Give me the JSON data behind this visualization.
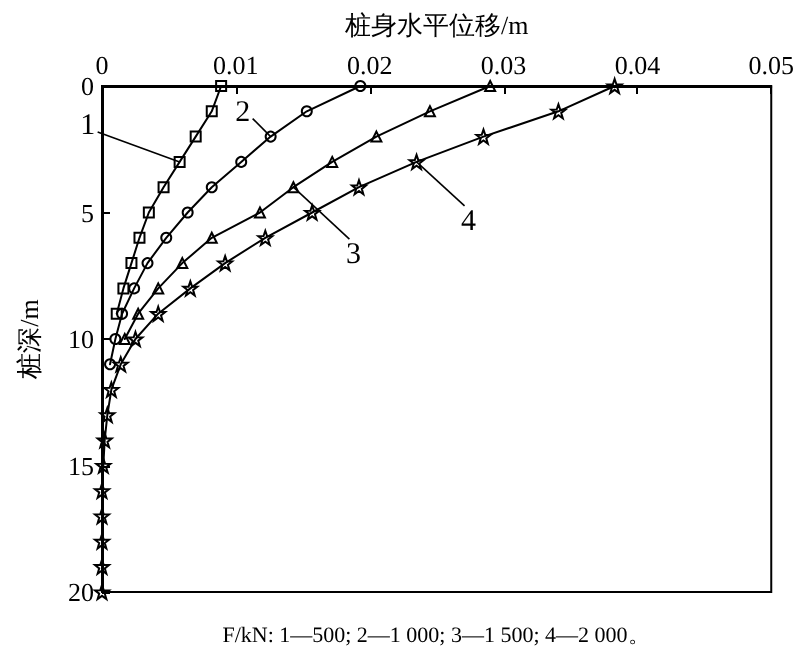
{
  "chart_data": {
    "type": "line",
    "xlabel": "桩身水平位移/m",
    "ylabel": "桩深/m",
    "xlim": [
      0,
      0.05
    ],
    "xticks": [
      0,
      0.01,
      0.02,
      0.03,
      0.04,
      0.05
    ],
    "ylim": [
      20,
      0
    ],
    "yticks": [
      0,
      5,
      10,
      15,
      20
    ],
    "grid": false,
    "line_style": "solid",
    "series": [
      {
        "color": "#000000",
        "marker": "square",
        "values": [
          0,
          1,
          2,
          3,
          4,
          5,
          6,
          7,
          8,
          9
        ],
        "x": [
          0.0089,
          0.0082,
          0.007,
          0.0058,
          0.0046,
          0.0035,
          0.0028,
          0.0022,
          0.0016,
          0.0011
        ]
      },
      {
        "color": "#000000",
        "marker": "circle",
        "values": [
          0,
          1,
          2,
          3,
          4,
          5,
          6,
          7,
          8,
          9,
          10,
          11
        ],
        "x": [
          0.0193,
          0.0153,
          0.0126,
          0.0104,
          0.0082,
          0.0064,
          0.0048,
          0.0034,
          0.0024,
          0.0015,
          0.001,
          0.0006
        ]
      },
      {
        "color": "#000000",
        "marker": "triangle",
        "values": [
          0,
          1,
          2,
          3,
          4,
          5,
          6,
          7,
          8,
          9,
          10
        ],
        "x": [
          0.029,
          0.0245,
          0.0205,
          0.0172,
          0.0143,
          0.0118,
          0.0082,
          0.006,
          0.0042,
          0.0027,
          0.0017
        ]
      },
      {
        "color": "#000000",
        "marker": "star",
        "values": [
          0,
          1,
          2,
          3,
          4,
          5,
          6,
          7,
          8,
          9,
          10,
          11,
          12,
          13,
          14,
          15,
          16,
          17,
          18,
          19,
          20
        ],
        "x": [
          0.0383,
          0.0341,
          0.0285,
          0.0235,
          0.0192,
          0.0157,
          0.0122,
          0.0092,
          0.0066,
          0.0042,
          0.0025,
          0.0014,
          0.0007,
          0.0004,
          0.0002,
          0.0001,
          0,
          0,
          0,
          0,
          0
        ]
      }
    ],
    "annotations": [
      {
        "text": "1",
        "x": 0.0058,
        "y": 3
      },
      {
        "text": "2",
        "x": 0.0126,
        "y": 2
      },
      {
        "text": "3",
        "x": 0.0143,
        "y": 4
      },
      {
        "text": "4",
        "x": 0.0235,
        "y": 3
      },
      "F/kN: 1—500; 2—1 000; 3—1 500; 4—2 000。"
    ]
  }
}
